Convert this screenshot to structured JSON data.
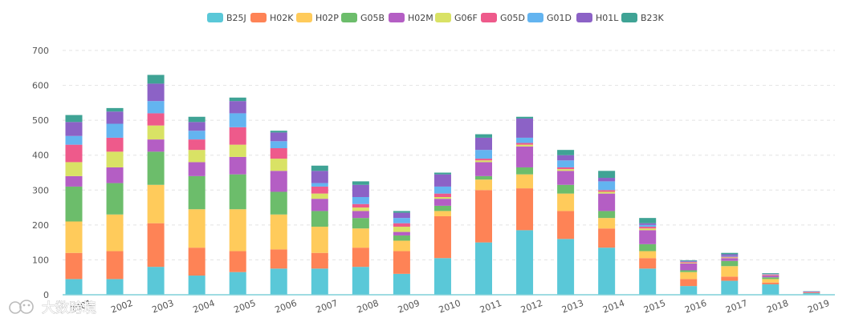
{
  "chart_data": {
    "type": "bar",
    "stacked": true,
    "title": "",
    "xlabel": "",
    "ylabel": "",
    "ylim": [
      0,
      700
    ],
    "yticks": [
      0,
      100,
      200,
      300,
      400,
      500,
      600,
      700
    ],
    "grid": true,
    "legend_position": "top-center",
    "categories": [
      "2001",
      "2002",
      "2003",
      "2004",
      "2005",
      "2006",
      "2007",
      "2008",
      "2009",
      "2010",
      "2011",
      "2012",
      "2013",
      "2014",
      "2015",
      "2016",
      "2017",
      "2018",
      "2019"
    ],
    "series": [
      {
        "name": "B25J",
        "color": "#5ac8d8",
        "values": [
          45,
          45,
          80,
          55,
          65,
          75,
          75,
          80,
          60,
          105,
          150,
          185,
          160,
          135,
          75,
          25,
          40,
          30,
          5
        ]
      },
      {
        "name": "H02K",
        "color": "#fe8356",
        "values": [
          75,
          80,
          125,
          80,
          60,
          55,
          45,
          55,
          65,
          120,
          150,
          120,
          80,
          55,
          30,
          20,
          12,
          5,
          2
        ]
      },
      {
        "name": "H02P",
        "color": "#ffcb5b",
        "values": [
          90,
          105,
          110,
          110,
          120,
          100,
          75,
          55,
          30,
          15,
          30,
          40,
          50,
          30,
          20,
          20,
          30,
          10,
          0
        ]
      },
      {
        "name": "G05B",
        "color": "#6cbd6b",
        "values": [
          100,
          90,
          95,
          95,
          100,
          65,
          45,
          30,
          15,
          15,
          10,
          20,
          25,
          20,
          20,
          5,
          15,
          5,
          0
        ]
      },
      {
        "name": "H02M",
        "color": "#b45ec4",
        "values": [
          30,
          45,
          35,
          40,
          50,
          60,
          35,
          20,
          10,
          20,
          40,
          60,
          40,
          50,
          40,
          20,
          8,
          5,
          2
        ]
      },
      {
        "name": "G06F",
        "color": "#d9e265",
        "values": [
          40,
          45,
          40,
          35,
          35,
          35,
          15,
          10,
          15,
          5,
          5,
          5,
          5,
          5,
          5,
          2,
          2,
          1,
          0
        ]
      },
      {
        "name": "G05D",
        "color": "#ee5a8b",
        "values": [
          50,
          40,
          35,
          30,
          50,
          30,
          20,
          10,
          10,
          10,
          5,
          5,
          5,
          5,
          5,
          2,
          2,
          2,
          0
        ]
      },
      {
        "name": "G01D",
        "color": "#63b4f0",
        "values": [
          25,
          40,
          35,
          25,
          40,
          20,
          10,
          20,
          15,
          20,
          25,
          15,
          20,
          25,
          5,
          1,
          2,
          1,
          0
        ]
      },
      {
        "name": "H01L",
        "color": "#8c62c6",
        "values": [
          40,
          35,
          50,
          25,
          35,
          25,
          35,
          35,
          15,
          35,
          35,
          55,
          15,
          10,
          5,
          2,
          5,
          1,
          0
        ]
      },
      {
        "name": "B23K",
        "color": "#3fa395",
        "values": [
          20,
          10,
          25,
          15,
          10,
          5,
          15,
          10,
          5,
          5,
          10,
          5,
          15,
          20,
          15,
          2,
          4,
          2,
          1
        ]
      }
    ]
  },
  "watermark": {
    "text": "大数跨境",
    "icon": "logo-icon"
  }
}
